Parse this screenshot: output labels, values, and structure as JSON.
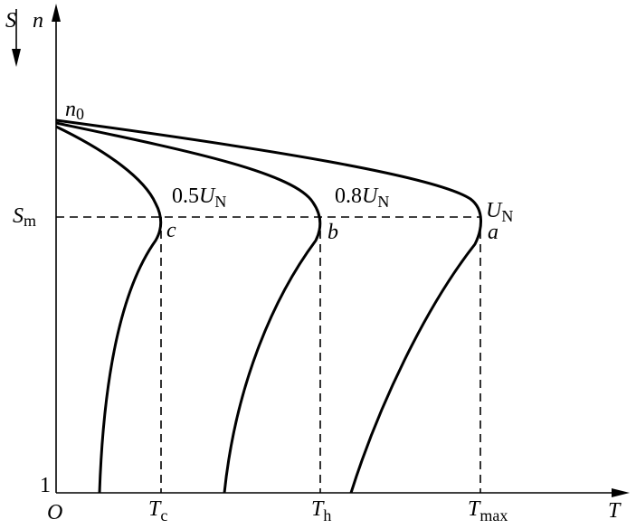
{
  "axes": {
    "s_axis": "S",
    "n_axis": "n",
    "t_axis": "T",
    "origin": "O",
    "one": "1"
  },
  "points": {
    "n0": {
      "text": "n",
      "sub": "0"
    },
    "sm": {
      "text": "S",
      "sub": "m"
    },
    "tc": {
      "text": "T",
      "sub": "c"
    },
    "th": {
      "text": "T",
      "sub": "h"
    },
    "tmax": {
      "text": "T",
      "sub": "max"
    },
    "a": "a",
    "b": "b",
    "c": "c"
  },
  "curves": [
    {
      "coef": "0.5",
      "text": "U",
      "sub": "N"
    },
    {
      "coef": "0.8",
      "text": "U",
      "sub": "N"
    },
    {
      "coef": "",
      "text": "U",
      "sub": "N"
    }
  ]
}
